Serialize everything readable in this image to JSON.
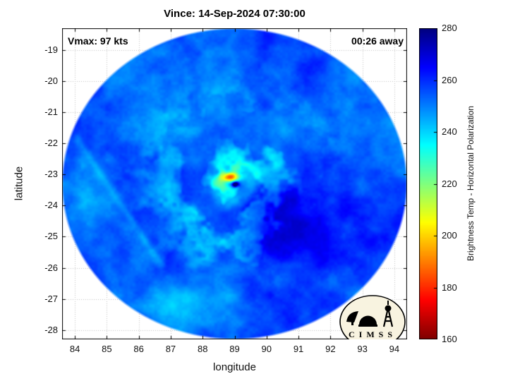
{
  "chart_data": {
    "type": "heatmap",
    "title": "Vince: 14-Sep-2024 07:30:00",
    "xlabel": "longitude",
    "ylabel": "latitude",
    "xlim": [
      83.6,
      94.4
    ],
    "ylim": [
      -28.3,
      -18.3
    ],
    "xticks": [
      84,
      85,
      86,
      87,
      88,
      89,
      90,
      91,
      92,
      93,
      94
    ],
    "yticks": [
      -19,
      -20,
      -21,
      -22,
      -23,
      -24,
      -25,
      -26,
      -27,
      -28
    ],
    "grid": true,
    "annotations": [
      {
        "text": "Vmax: 97 kts",
        "position": "top-left"
      },
      {
        "text": "00:26 away",
        "position": "top-right"
      }
    ],
    "colorbar": {
      "label": "Brightness Temp - Horizontal Polarization",
      "min": 160,
      "max": 280,
      "ticks": [
        160,
        180,
        200,
        220,
        240,
        260,
        280
      ],
      "colormap": "jet",
      "orientation": "vertical",
      "stops": [
        [
          0,
          "#000080"
        ],
        [
          0.125,
          "#0000ff"
        ],
        [
          0.375,
          "#00ffff"
        ],
        [
          0.625,
          "#ffff00"
        ],
        [
          0.875,
          "#ff0000"
        ],
        [
          1,
          "#800000"
        ]
      ]
    },
    "storm": {
      "name": "Vince",
      "datetime": "14-Sep-2024 07:30:00",
      "vmax_kts": 97,
      "time_to_obs": "00:26 away",
      "eye_lon": 89.03,
      "eye_lat": -23.32,
      "eye_temp_K": 278,
      "warm_spot_temp_K": 196
    },
    "swath": {
      "shape": "ellipse",
      "center_lon": 89.0,
      "center_lat": -23.3,
      "radius_lon": 5.35,
      "radius_lat": 4.95
    },
    "field": {
      "base_temp": 254,
      "noise": [
        {
          "scale": 0.7,
          "amp": 9,
          "ox": 0,
          "oy": 0
        },
        {
          "scale": 2.3,
          "amp": 5,
          "ox": 5.2,
          "oy": 2.8
        }
      ],
      "spiral": {
        "arms": 1,
        "twist": 4.2,
        "strength": 15,
        "center_r": 1.0,
        "width": 2.0,
        "noise_warp": 2.5
      },
      "features": [
        {
          "kind": "ring",
          "name": "eyewall-cyan-ring",
          "r": 0.5,
          "width": 0.3,
          "delta": -12
        },
        {
          "kind": "gauss",
          "name": "dark-overcast-southeast",
          "lon": 91.0,
          "lat": -24.8,
          "sx": 1.9,
          "sy": 1.3,
          "delta": 16
        },
        {
          "kind": "gauss",
          "name": "dark-patch-east-of-eye",
          "lon": 90.1,
          "lat": -23.7,
          "sx": 1.1,
          "sy": 0.7,
          "delta": 9
        },
        {
          "kind": "gauss",
          "name": "warm-spot",
          "lon": 88.87,
          "lat": -23.09,
          "sx": 0.27,
          "sy": 0.15,
          "delta": -62
        },
        {
          "kind": "gauss",
          "name": "eye",
          "lon": 89.03,
          "lat": -23.32,
          "sx": 0.1,
          "sy": 0.085,
          "delta": 50
        },
        {
          "kind": "gauss",
          "name": "rim-cyan-south",
          "lon": 87.5,
          "lat": -27.2,
          "sx": 1.6,
          "sy": 0.55,
          "delta": -8
        },
        {
          "kind": "gauss",
          "name": "rim-cyan-west",
          "lon": 84.6,
          "lat": -23.6,
          "sx": 0.7,
          "sy": 1.6,
          "delta": -7
        },
        {
          "kind": "seam",
          "name": "scan-seam-west",
          "a": [
            84.1,
            -21.9
          ],
          "b": [
            86.7,
            -25.9
          ],
          "width": 0.13,
          "delta": -6
        }
      ]
    },
    "logo": {
      "text": "CIMSS"
    }
  }
}
